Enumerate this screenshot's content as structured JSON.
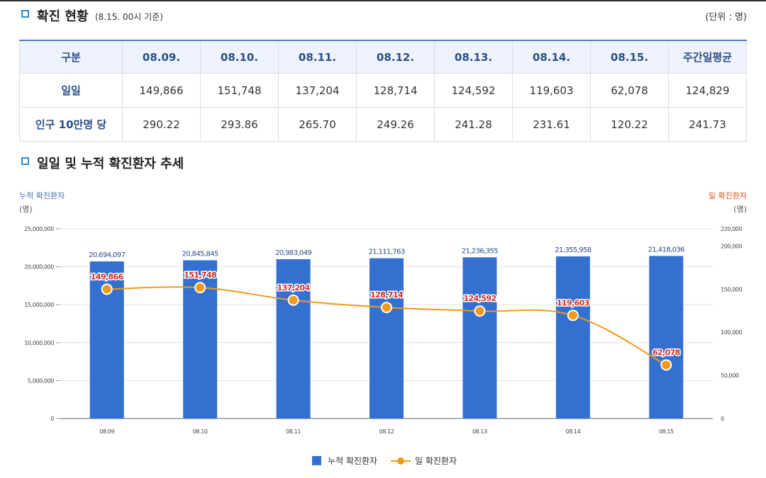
{
  "status_section": {
    "title": "확진 현황",
    "subtitle": "(8.15. 00시 기준)",
    "unit": "(단위 : 명)"
  },
  "table": {
    "headers": [
      "구분",
      "08.09.",
      "08.10.",
      "08.11.",
      "08.12.",
      "08.13.",
      "08.14.",
      "08.15.",
      "주간일평균"
    ],
    "rows": [
      {
        "label": "일일",
        "values": [
          "149,866",
          "151,748",
          "137,204",
          "128,714",
          "124,592",
          "119,603",
          "62,078",
          "124,829"
        ]
      },
      {
        "label": "인구 10만명 당",
        "values": [
          "290.22",
          "293.86",
          "265.70",
          "249.26",
          "241.28",
          "231.61",
          "120.22",
          "241.73"
        ]
      }
    ]
  },
  "trend_section": {
    "title": "일일 및 누적 확진환자 추세"
  },
  "chart_data": {
    "type": "bar",
    "categories": [
      "08.09",
      "08.10",
      "08.11",
      "08.12",
      "08.13",
      "08.14",
      "08.15"
    ],
    "left_axis": {
      "title": "누적 확진환자",
      "unit": "(명)",
      "ylim": [
        0,
        25000000
      ],
      "ticks": [
        0,
        5000000,
        10000000,
        15000000,
        20000000,
        25000000
      ],
      "tick_labels": [
        "0",
        "5,000,000",
        "10,000,000",
        "15,000,000",
        "20,000,000",
        "25,000,000"
      ]
    },
    "right_axis": {
      "title": "일 확진환자",
      "unit": "(명)",
      "ylim": [
        0,
        220000
      ],
      "ticks": [
        0,
        50000,
        100000,
        150000,
        200000,
        220000
      ],
      "tick_labels": [
        "0",
        "50,000",
        "100,000",
        "150,000",
        "200,000",
        "220,000"
      ]
    },
    "series": [
      {
        "name": "누적 확진환자",
        "type": "bar",
        "axis": "left",
        "color": "#3470cf",
        "values": [
          20694097,
          20845845,
          20983049,
          21111763,
          21236355,
          21355958,
          21418036
        ],
        "labels": [
          "20,694,097",
          "20,845,845",
          "20,983,049",
          "21,111,763",
          "21,236,355",
          "21,355,958",
          "21,418,036"
        ]
      },
      {
        "name": "일 확진환자",
        "type": "line",
        "axis": "right",
        "color": "#f09a1a",
        "values": [
          149866,
          151748,
          137204,
          128714,
          124592,
          119603,
          62078
        ],
        "labels": [
          "149,866",
          "151,748",
          "137,204",
          "128,714",
          "124,592",
          "119,603",
          "62,078"
        ]
      }
    ],
    "grid": true,
    "legend_position": "bottom"
  },
  "colors": {
    "accent": "#2a8fd0",
    "header_text": "#2c4f86",
    "bar": "#3470cf",
    "line": "#f09a1a",
    "line_label": "#d0302a"
  }
}
